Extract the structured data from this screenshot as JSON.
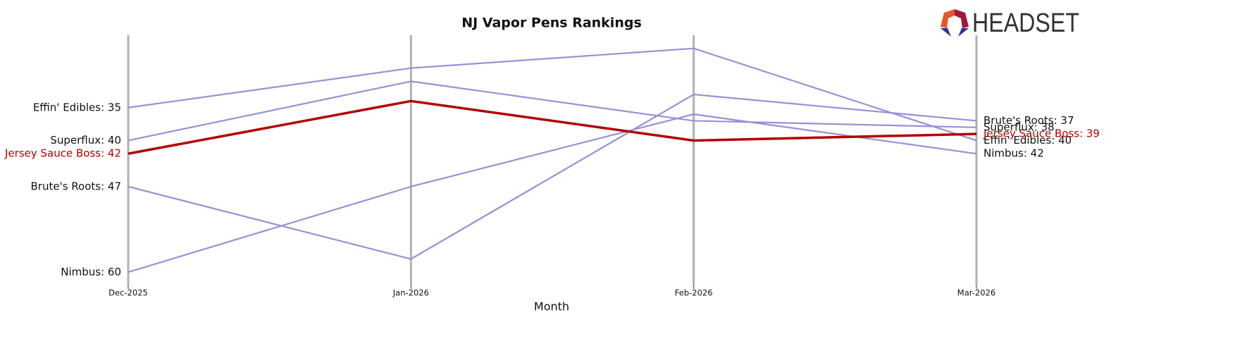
{
  "chart_data": {
    "type": "bump",
    "title": "NJ Vapor Pens Rankings",
    "x_label": "Month",
    "categories": [
      "Dec-2025",
      "Jan-2026",
      "Feb-2026",
      "Mar-2026"
    ],
    "ylim": [
      62,
      24
    ],
    "inverted": true,
    "series": [
      {
        "name": "Effin' Edibles",
        "color": "#9a8fd8",
        "values": [
          35,
          29,
          26,
          40
        ],
        "value_labels": [
          "Effin' Edibles: 35",
          null,
          null,
          "Effin' Edibles: 40"
        ]
      },
      {
        "name": "Superflux",
        "color": "#9a8fd8",
        "values": [
          40,
          31,
          37,
          38
        ],
        "value_labels": [
          "Superflux: 40",
          null,
          null,
          "Superflux: 38"
        ]
      },
      {
        "name": "Brute's Roots",
        "color": "#9a8fd8",
        "values": [
          47,
          58,
          33,
          37
        ],
        "value_labels": [
          "Brute's Roots: 47",
          null,
          null,
          "Brute's Roots: 37"
        ]
      },
      {
        "name": "Nimbus",
        "color": "#9a8fd8",
        "values": [
          60,
          47,
          36,
          42
        ],
        "value_labels": [
          "Nimbus: 60",
          null,
          null,
          "Nimbus: 42"
        ]
      },
      {
        "name": "Jersey Sauce Boss",
        "color": "#b30000",
        "highlight": true,
        "values": [
          42,
          34,
          40,
          39
        ],
        "value_labels": [
          "Jersey Sauce Boss: 42",
          null,
          null,
          "Jersey Sauce Boss: 39"
        ]
      }
    ]
  },
  "logo": {
    "text": "HEADSET"
  }
}
